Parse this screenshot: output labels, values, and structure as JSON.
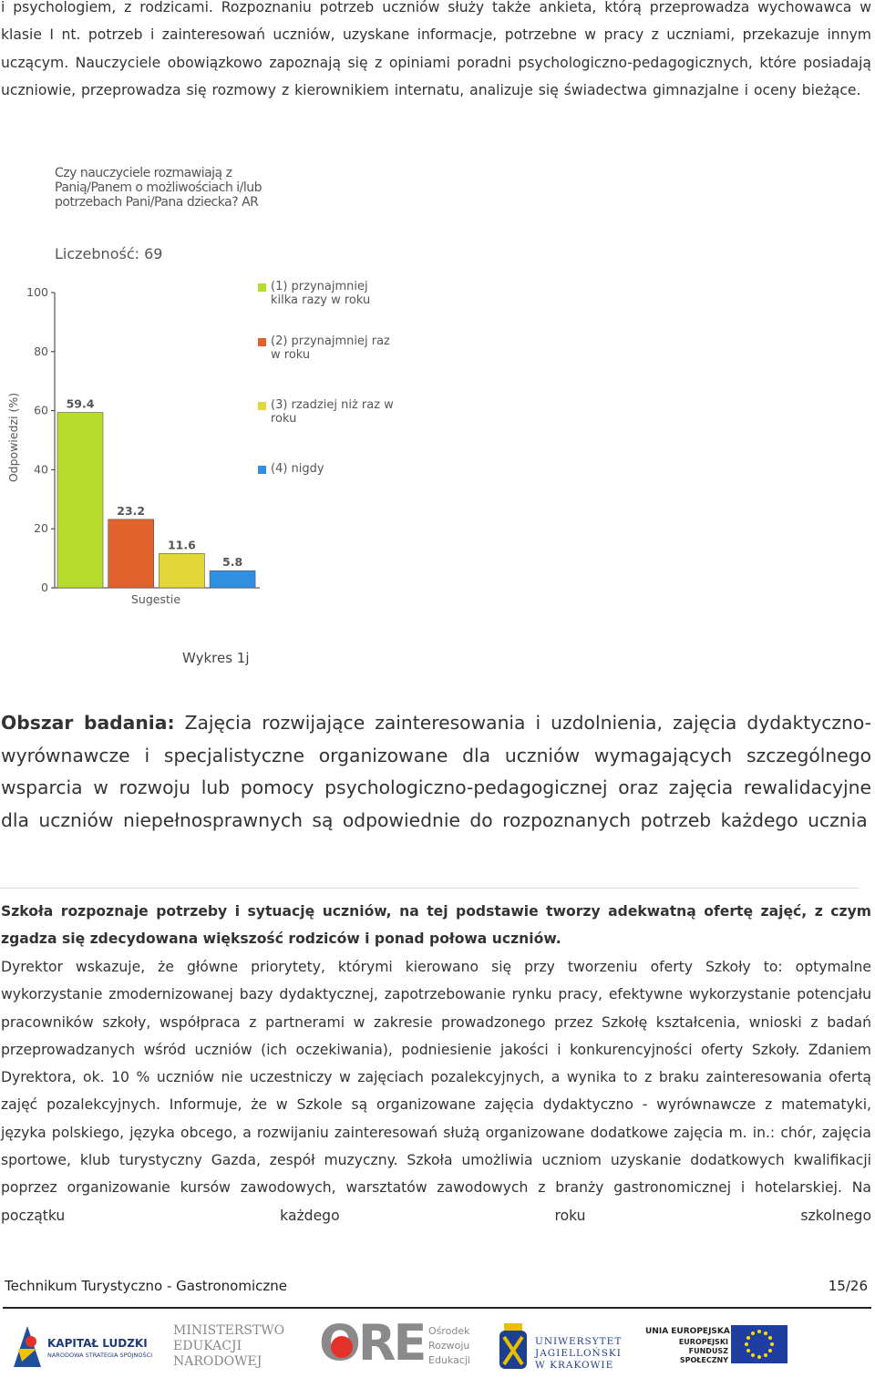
{
  "paragraph_1": "i psychologiem, z rodzicami. Rozpoznaniu potrzeb uczniów służy także ankieta, którą przeprowadza wychowawca w klasie I nt. potrzeb i zainteresowań uczniów, uzyskane informacje, potrzebne w pracy z uczniami, przekazuje innym uczącym. Nauczyciele obowiązkowo zapoznają się z opiniami poradni psychologiczno-pedagogicznych, które posiadają uczniowie, przeprowadza się rozmowy z kierownikiem internatu, analizuje się świadectwa gimnazjalne i oceny bieżące.",
  "chart_data": {
    "type": "bar",
    "title": "Czy nauczyciele rozmawiają z Panią/Panem o możliwościach i/lub potrzebach Pani/Pana dziecka? AR",
    "subtitle": "Liczebność: 69",
    "y_label": "Odpowiedzi (%)",
    "x_label": "Sugestie",
    "ylim": [
      0,
      100
    ],
    "yticks": [
      0,
      20,
      40,
      60,
      80,
      100
    ],
    "series": [
      {
        "name": "(1) przynajmniej kilka razy w roku",
        "color": "#b7dc2e",
        "values": [
          59.4
        ]
      },
      {
        "name": "(2) przynajmniej raz w roku",
        "color": "#e0622c",
        "values": [
          23.2
        ]
      },
      {
        "name": "(3) rzadziej niż raz w roku",
        "color": "#e2d638",
        "values": [
          11.6
        ]
      },
      {
        "name": "(4) nigdy",
        "color": "#2f8fe0",
        "values": [
          5.8
        ]
      }
    ]
  },
  "caption": "Wykres 1j",
  "area": {
    "label": "Obszar badania:",
    "text": "Zajęcia rozwijające zainteresowania i uzdolnienia, zajęcia dydaktyczno-wyrównawcze i specjalistyczne organizowane dla uczniów wymagających szczególnego wsparcia w rozwoju lub pomocy psychologiczno-pedagogicznej oraz zajęcia rewalidacyjne dla uczniów niepełnosprawnych są odpowiednie do rozpoznanych potrzeb każdego ucznia"
  },
  "finding": "Szkoła rozpoznaje potrzeby i sytuację uczniów, na tej podstawie tworzy adekwatną ofertę zajęć, z czym zgadza się zdecydowana większość rodziców i ponad połowa uczniów.",
  "paragraph_2": "Dyrektor wskazuje, że główne priorytety, którymi kierowano się przy tworzeniu oferty Szkoły to: optymalne wykorzystanie zmodernizowanej bazy dydaktycznej, zapotrzebowanie rynku pracy, efektywne wykorzystanie potencjału pracowników szkoły, współpraca z partnerami w zakresie prowadzonego przez Szkołę kształcenia, wnioski z badań przeprowadzanych wśród uczniów (ich oczekiwania), podniesienie jakości i konkurencyjności oferty Szkoły. Zdaniem Dyrektora, ok. 10 % uczniów nie uczestniczy w zajęciach pozalekcyjnych, a wynika to z braku zainteresowania ofertą zajęć pozalekcyjnych. Informuje, że w Szkole są organizowane zajęcia dydaktyczno - wyrównawcze z matematyki, języka polskiego, języka obcego, a rozwijaniu zainteresowań służą organizowane dodatkowe zajęcia m. in.: chór, zajęcia sportowe, klub turystyczny Gazda, zespół muzyczny. Szkoła umożliwia uczniom uzyskanie dodatkowych kwalifikacji poprzez organizowanie kursów zawodowych, warsztatów zawodowych z branży gastronomicznej i hotelarskiej. Na początku każdego roku szkolnego",
  "footer": {
    "school": "Technikum Turystyczno - Gastronomiczne",
    "page": "15/26"
  },
  "logos": {
    "kapital": "KAPITAŁ LUDZKI",
    "kapital_sub": "NARODOWA STRATEGIA SPÓJNOŚCI",
    "men": "MINISTERSTWO EDUKACJI NARODOWEJ",
    "ore": "ORE",
    "ore_sub": "Ośrodek Rozwoju Edukacji",
    "uj": "UNIWERSYTET JAGIELLOŃSKI W KRAKOWIE",
    "ue": "UNIA EUROPEJSKA",
    "ue_sub": "EUROPEJSKI FUNDUSZ SPOŁECZNY"
  }
}
